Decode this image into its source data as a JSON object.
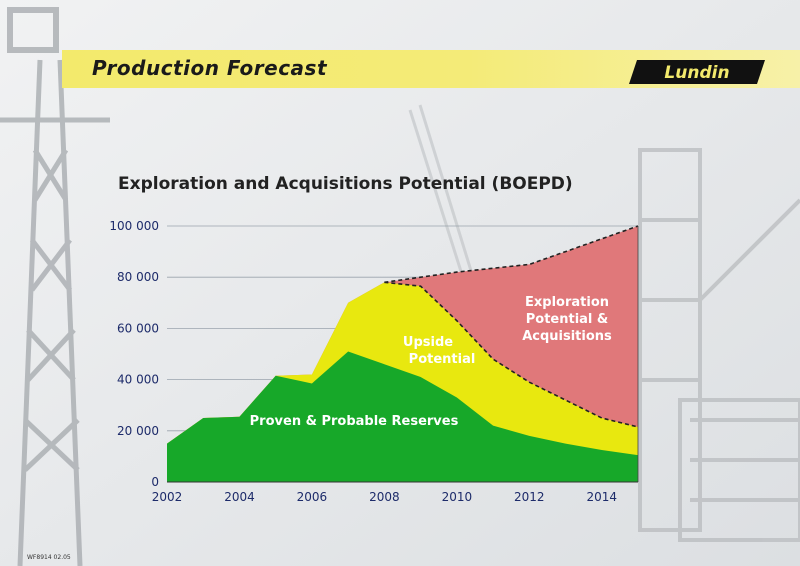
{
  "slide": {
    "title": "Production Forecast",
    "footer": "WF8914 02.05"
  },
  "logo": {
    "text": "Lundin"
  },
  "colors": {
    "banner": "#f3ea6c",
    "proven": "#17a829",
    "upside": "#e8e80f",
    "exploration": "#e0787a",
    "axis_text": "#1d2b6a"
  },
  "chart_data": {
    "type": "area",
    "title": "Exploration and Acquisitions Potential (BOEPD)",
    "xlabel": "",
    "ylabel": "",
    "x": [
      2002,
      2003,
      2004,
      2005,
      2006,
      2007,
      2008,
      2009,
      2010,
      2011,
      2012,
      2013,
      2014,
      2015
    ],
    "xlim": [
      2002,
      2015
    ],
    "ylim": [
      0,
      100000
    ],
    "x_ticks": [
      "2002",
      "2004",
      "2006",
      "2008",
      "2010",
      "2012",
      "2014"
    ],
    "y_ticks": [
      "0",
      "20 000",
      "40 000",
      "60 000",
      "80 000",
      "100 000"
    ],
    "stacking": "cumulative totals",
    "series": [
      {
        "key": "proven",
        "values": [
          15000,
          25000,
          25500,
          41500,
          38500,
          51000,
          46000,
          41000,
          33000,
          22000,
          18000,
          15000,
          12500,
          10500
        ]
      },
      {
        "key": "upside",
        "values": [
          15000,
          25000,
          25500,
          41500,
          42000,
          70000,
          78000,
          76500,
          63000,
          48000,
          39000,
          32000,
          25000,
          21500
        ]
      },
      {
        "key": "exploration",
        "values": [
          15000,
          25000,
          25500,
          41500,
          42000,
          70000,
          78000,
          80000,
          82000,
          83500,
          85000,
          90000,
          95000,
          100000
        ]
      }
    ],
    "annotations": [
      {
        "key": "proven",
        "lines": [
          "Proven & Probable Reserves"
        ]
      },
      {
        "key": "upside",
        "lines": [
          "Upside",
          "Potential"
        ]
      },
      {
        "key": "exploration",
        "lines": [
          "Exploration",
          "Potential &",
          "Acquisitions"
        ]
      }
    ],
    "dashed_outline": "upside-top and total-top from 2008",
    "grid": true
  }
}
